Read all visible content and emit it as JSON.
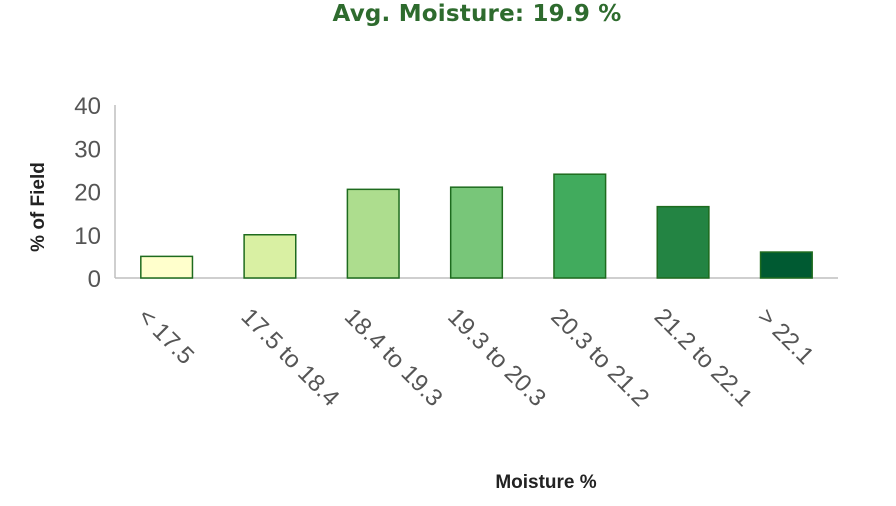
{
  "chart_data": {
    "type": "bar",
    "title": "Avg. Moisture: 19.9 %",
    "xlabel": "Moisture %",
    "ylabel": "% of Field",
    "categories": [
      "< 17.5",
      "17.5 to 18.4",
      "18.4 to 19.3",
      "19.3 to 20.3",
      "20.3 to 21.2",
      "21.2 to 22.1",
      "> 22.1"
    ],
    "values": [
      5,
      10,
      20.5,
      21,
      24,
      16.5,
      6
    ],
    "ylim": [
      0,
      40
    ],
    "yticks": [
      "0",
      "10",
      "20",
      "30",
      "40"
    ],
    "grid": false,
    "legend": "none",
    "colors": [
      "#ffffcc",
      "#d9f0a3",
      "#addd8e",
      "#78c679",
      "#41ab5d",
      "#238443",
      "#005a32"
    ],
    "bar_stroke": "#1e6b1e",
    "title_color": "#2e6b2e"
  }
}
